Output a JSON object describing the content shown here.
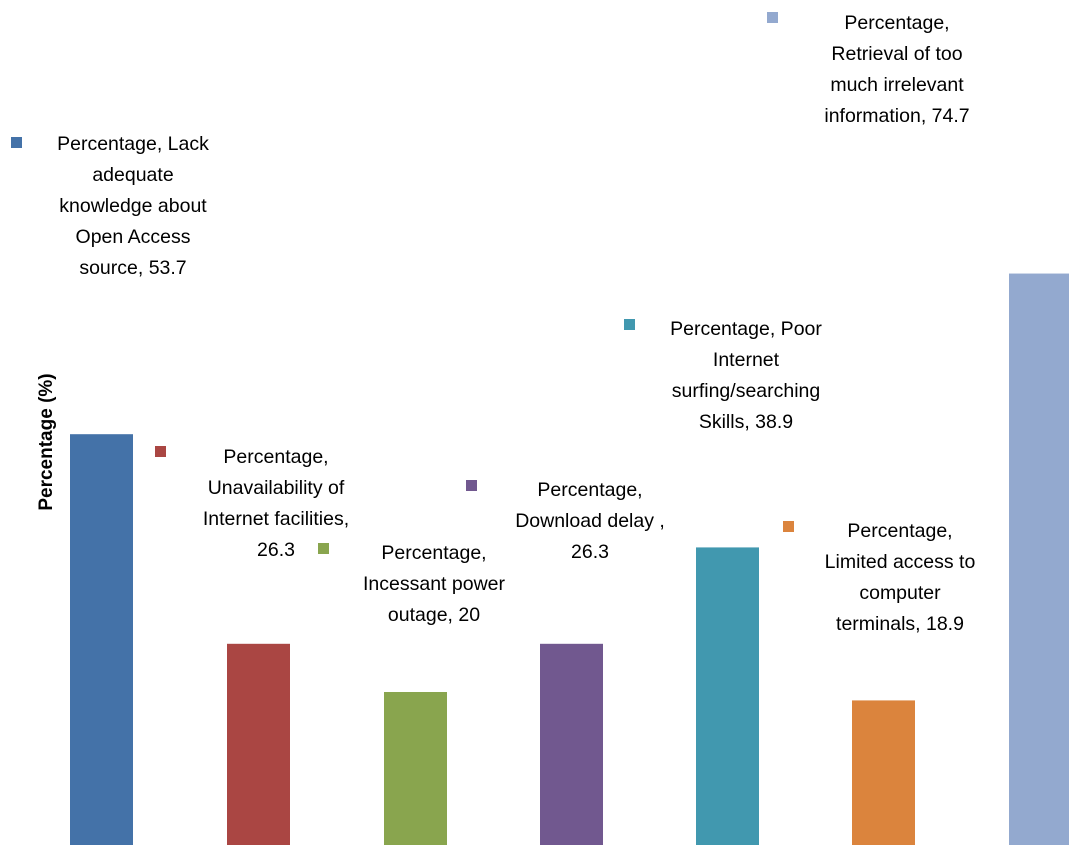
{
  "chart_data": {
    "type": "bar",
    "ylabel": "Percentage (%)",
    "xlabel": "",
    "ylim": [
      0,
      80
    ],
    "grid": false,
    "legend": "none",
    "series_name": "Percentage",
    "categories": [
      "Lack adequate knowledge about Open Access source",
      "Unavailability of Internet facilities",
      "Incessant power outage",
      "Download delay",
      "Poor Internet surfing/searching Skills",
      "Limited access to computer terminals",
      "Retrieval of too much irrelevant information"
    ],
    "values": [
      53.7,
      26.3,
      20,
      26.3,
      38.9,
      18.9,
      74.7
    ],
    "colors": [
      "#4472A8",
      "#AA4643",
      "#89A54E",
      "#71588F",
      "#4198AF",
      "#DB843D",
      "#93A9CF"
    ],
    "data_labels": [
      [
        "Percentage, Lack",
        "adequate",
        "knowledge about",
        "Open Access",
        "source, 53.7"
      ],
      [
        "Percentage,",
        "Unavailability of",
        "Internet facilities,",
        "26.3"
      ],
      [
        "Percentage,",
        "Incessant power",
        "outage, 20"
      ],
      [
        "Percentage,",
        "Download delay  ,",
        "26.3"
      ],
      [
        "Percentage, Poor",
        "Internet",
        "surfing/searching",
        "Skills, 38.9"
      ],
      [
        "Percentage,",
        "Limited access to",
        "computer",
        "terminals, 18.9"
      ],
      [
        "Percentage,",
        "Retrieval of too",
        "much irrelevant",
        "information, 74.7"
      ]
    ]
  }
}
